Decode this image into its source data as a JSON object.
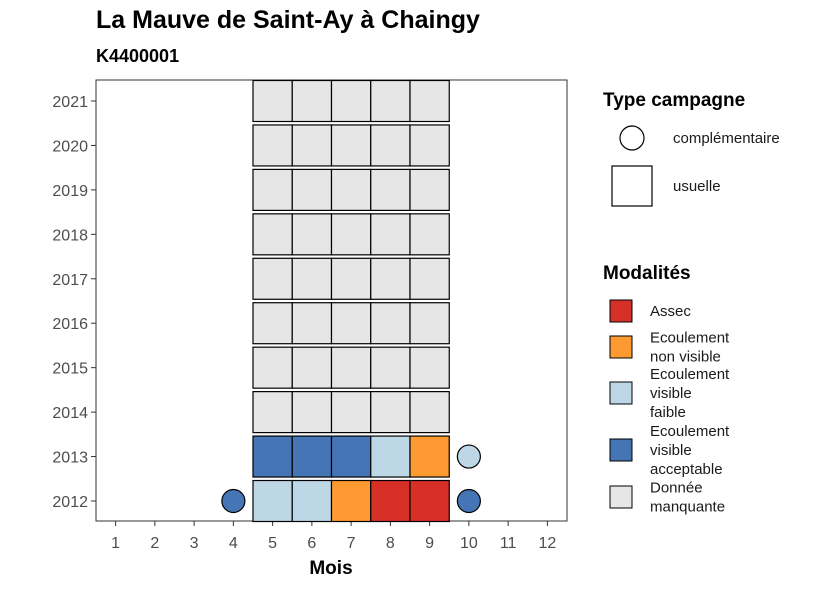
{
  "chart_data": {
    "type": "heatmap",
    "title": "La Mauve de Saint-Ay à Chaingy",
    "subtitle": "K4400001",
    "xlabel": "Mois",
    "ylabel": "",
    "x_ticks": [
      "1",
      "2",
      "3",
      "4",
      "5",
      "6",
      "7",
      "8",
      "9",
      "10",
      "11",
      "12"
    ],
    "y_ticks": [
      "2012",
      "2013",
      "2014",
      "2015",
      "2016",
      "2017",
      "2018",
      "2019",
      "2020",
      "2021"
    ],
    "xlim": [
      0.5,
      12.5
    ],
    "grid": false,
    "cells": [
      {
        "year": 2012,
        "month": 4,
        "campaign": "complémentaire",
        "modality": "Ecoulement visible acceptable"
      },
      {
        "year": 2012,
        "month": 5,
        "campaign": "usuelle",
        "modality": "Ecoulement visible faible"
      },
      {
        "year": 2012,
        "month": 6,
        "campaign": "usuelle",
        "modality": "Ecoulement visible faible"
      },
      {
        "year": 2012,
        "month": 7,
        "campaign": "usuelle",
        "modality": "Ecoulement non visible"
      },
      {
        "year": 2012,
        "month": 8,
        "campaign": "usuelle",
        "modality": "Assec"
      },
      {
        "year": 2012,
        "month": 9,
        "campaign": "usuelle",
        "modality": "Assec"
      },
      {
        "year": 2012,
        "month": 10,
        "campaign": "complémentaire",
        "modality": "Ecoulement visible acceptable"
      },
      {
        "year": 2013,
        "month": 5,
        "campaign": "usuelle",
        "modality": "Ecoulement visible acceptable"
      },
      {
        "year": 2013,
        "month": 6,
        "campaign": "usuelle",
        "modality": "Ecoulement visible acceptable"
      },
      {
        "year": 2013,
        "month": 7,
        "campaign": "usuelle",
        "modality": "Ecoulement visible acceptable"
      },
      {
        "year": 2013,
        "month": 8,
        "campaign": "usuelle",
        "modality": "Ecoulement visible faible"
      },
      {
        "year": 2013,
        "month": 9,
        "campaign": "usuelle",
        "modality": "Ecoulement non visible"
      },
      {
        "year": 2013,
        "month": 10,
        "campaign": "complémentaire",
        "modality": "Ecoulement visible faible"
      },
      {
        "year": 2014,
        "month": 5,
        "campaign": "usuelle",
        "modality": "Donnée manquante"
      },
      {
        "year": 2014,
        "month": 6,
        "campaign": "usuelle",
        "modality": "Donnée manquante"
      },
      {
        "year": 2014,
        "month": 7,
        "campaign": "usuelle",
        "modality": "Donnée manquante"
      },
      {
        "year": 2014,
        "month": 8,
        "campaign": "usuelle",
        "modality": "Donnée manquante"
      },
      {
        "year": 2014,
        "month": 9,
        "campaign": "usuelle",
        "modality": "Donnée manquante"
      },
      {
        "year": 2015,
        "month": 5,
        "campaign": "usuelle",
        "modality": "Donnée manquante"
      },
      {
        "year": 2015,
        "month": 6,
        "campaign": "usuelle",
        "modality": "Donnée manquante"
      },
      {
        "year": 2015,
        "month": 7,
        "campaign": "usuelle",
        "modality": "Donnée manquante"
      },
      {
        "year": 2015,
        "month": 8,
        "campaign": "usuelle",
        "modality": "Donnée manquante"
      },
      {
        "year": 2015,
        "month": 9,
        "campaign": "usuelle",
        "modality": "Donnée manquante"
      },
      {
        "year": 2016,
        "month": 5,
        "campaign": "usuelle",
        "modality": "Donnée manquante"
      },
      {
        "year": 2016,
        "month": 6,
        "campaign": "usuelle",
        "modality": "Donnée manquante"
      },
      {
        "year": 2016,
        "month": 7,
        "campaign": "usuelle",
        "modality": "Donnée manquante"
      },
      {
        "year": 2016,
        "month": 8,
        "campaign": "usuelle",
        "modality": "Donnée manquante"
      },
      {
        "year": 2016,
        "month": 9,
        "campaign": "usuelle",
        "modality": "Donnée manquante"
      },
      {
        "year": 2017,
        "month": 5,
        "campaign": "usuelle",
        "modality": "Donnée manquante"
      },
      {
        "year": 2017,
        "month": 6,
        "campaign": "usuelle",
        "modality": "Donnée manquante"
      },
      {
        "year": 2017,
        "month": 7,
        "campaign": "usuelle",
        "modality": "Donnée manquante"
      },
      {
        "year": 2017,
        "month": 8,
        "campaign": "usuelle",
        "modality": "Donnée manquante"
      },
      {
        "year": 2017,
        "month": 9,
        "campaign": "usuelle",
        "modality": "Donnée manquante"
      },
      {
        "year": 2018,
        "month": 5,
        "campaign": "usuelle",
        "modality": "Donnée manquante"
      },
      {
        "year": 2018,
        "month": 6,
        "campaign": "usuelle",
        "modality": "Donnée manquante"
      },
      {
        "year": 2018,
        "month": 7,
        "campaign": "usuelle",
        "modality": "Donnée manquante"
      },
      {
        "year": 2018,
        "month": 8,
        "campaign": "usuelle",
        "modality": "Donnée manquante"
      },
      {
        "year": 2018,
        "month": 9,
        "campaign": "usuelle",
        "modality": "Donnée manquante"
      },
      {
        "year": 2019,
        "month": 5,
        "campaign": "usuelle",
        "modality": "Donnée manquante"
      },
      {
        "year": 2019,
        "month": 6,
        "campaign": "usuelle",
        "modality": "Donnée manquante"
      },
      {
        "year": 2019,
        "month": 7,
        "campaign": "usuelle",
        "modality": "Donnée manquante"
      },
      {
        "year": 2019,
        "month": 8,
        "campaign": "usuelle",
        "modality": "Donnée manquante"
      },
      {
        "year": 2019,
        "month": 9,
        "campaign": "usuelle",
        "modality": "Donnée manquante"
      },
      {
        "year": 2020,
        "month": 5,
        "campaign": "usuelle",
        "modality": "Donnée manquante"
      },
      {
        "year": 2020,
        "month": 6,
        "campaign": "usuelle",
        "modality": "Donnée manquante"
      },
      {
        "year": 2020,
        "month": 7,
        "campaign": "usuelle",
        "modality": "Donnée manquante"
      },
      {
        "year": 2020,
        "month": 8,
        "campaign": "usuelle",
        "modality": "Donnée manquante"
      },
      {
        "year": 2020,
        "month": 9,
        "campaign": "usuelle",
        "modality": "Donnée manquante"
      },
      {
        "year": 2021,
        "month": 5,
        "campaign": "usuelle",
        "modality": "Donnée manquante"
      },
      {
        "year": 2021,
        "month": 6,
        "campaign": "usuelle",
        "modality": "Donnée manquante"
      },
      {
        "year": 2021,
        "month": 7,
        "campaign": "usuelle",
        "modality": "Donnée manquante"
      },
      {
        "year": 2021,
        "month": 8,
        "campaign": "usuelle",
        "modality": "Donnée manquante"
      },
      {
        "year": 2021,
        "month": 9,
        "campaign": "usuelle",
        "modality": "Donnée manquante"
      }
    ],
    "legend": {
      "placement": "right",
      "campaign": {
        "title": "Type campagne",
        "items": [
          {
            "label": "complémentaire",
            "shape": "circle"
          },
          {
            "label": "usuelle",
            "shape": "square"
          }
        ]
      },
      "modalities": {
        "title": "Modalités",
        "items": [
          {
            "key": "Assec",
            "lines": [
              "Assec"
            ],
            "color": "#d73027"
          },
          {
            "key": "Ecoulement non visible",
            "lines": [
              "Ecoulement",
              "non visible"
            ],
            "color": "#fd9a32"
          },
          {
            "key": "Ecoulement visible faible",
            "lines": [
              "Ecoulement",
              "visible",
              "faible"
            ],
            "color": "#bdd7e7"
          },
          {
            "key": "Ecoulement visible acceptable",
            "lines": [
              "Ecoulement",
              "visible",
              "acceptable"
            ],
            "color": "#4575b4"
          },
          {
            "key": "Donnée manquante",
            "lines": [
              "Donnée",
              "manquante"
            ],
            "color": "#e6e6e6"
          }
        ]
      }
    }
  }
}
